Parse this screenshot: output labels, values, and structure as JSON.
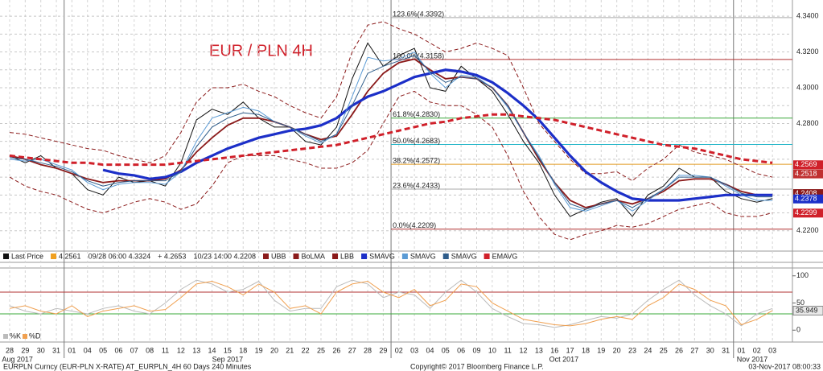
{
  "chart_data": [
    {
      "type": "line",
      "title": "EUR / PLN 4H",
      "categories": [
        "28",
        "29",
        "30",
        "31",
        "01",
        "04",
        "05",
        "06",
        "07",
        "08",
        "11",
        "12",
        "13",
        "14",
        "15",
        "18",
        "19",
        "20",
        "21",
        "22",
        "25",
        "26",
        "27",
        "28",
        "29",
        "02",
        "03",
        "04",
        "05",
        "06",
        "09",
        "10",
        "11",
        "12",
        "13",
        "16",
        "17",
        "18",
        "19",
        "20",
        "23",
        "24",
        "25",
        "26",
        "27",
        "30",
        "31",
        "01",
        "02",
        "03"
      ],
      "months": [
        "Aug 2017",
        "Sep 2017",
        "Oct 2017",
        "Nov 2017"
      ],
      "ylim": [
        4.21,
        4.345
      ],
      "yticks": [
        {
          "value": 4.22,
          "label": "4.2200"
        },
        {
          "value": 4.23,
          "label": ""
        },
        {
          "value": 4.24,
          "label": ""
        },
        {
          "value": 4.25,
          "label": ""
        },
        {
          "value": 4.26,
          "label": ""
        },
        {
          "value": 4.27,
          "label": ""
        },
        {
          "value": 4.28,
          "label": "4.2800"
        },
        {
          "value": 4.29,
          "label": ""
        },
        {
          "value": 4.3,
          "label": "4.3000"
        },
        {
          "value": 4.31,
          "label": ""
        },
        {
          "value": 4.32,
          "label": "4.3200"
        },
        {
          "value": 4.33,
          "label": ""
        },
        {
          "value": 4.34,
          "label": "4.3400"
        }
      ],
      "grid": true,
      "legend_stats": [
        "4.2561",
        "09/28 06:00 4.3324",
        "+ 4.2653",
        "10/23 14:00 4.2208"
      ],
      "series": [
        {
          "name": "Last Price",
          "color": "#111111",
          "style": "thin",
          "values": [
            4.262,
            4.258,
            4.262,
            4.255,
            4.252,
            4.243,
            4.24,
            4.25,
            4.247,
            4.248,
            4.245,
            4.258,
            4.282,
            4.288,
            4.285,
            4.292,
            4.283,
            4.278,
            4.278,
            4.27,
            4.268,
            4.278,
            4.305,
            4.325,
            4.312,
            4.318,
            4.322,
            4.3,
            4.298,
            4.312,
            4.305,
            4.298,
            4.285,
            4.27,
            4.258,
            4.24,
            4.228,
            4.232,
            4.236,
            4.238,
            4.228,
            4.24,
            4.245,
            4.255,
            4.25,
            4.25,
            4.242,
            4.238,
            4.236,
            4.238
          ]
        },
        {
          "name": "UBB",
          "color": "#8b1a1a",
          "style": "dashed",
          "values": [
            4.275,
            4.274,
            4.272,
            4.27,
            4.268,
            4.266,
            4.265,
            4.262,
            4.26,
            4.258,
            4.262,
            4.275,
            4.292,
            4.3,
            4.3,
            4.302,
            4.298,
            4.295,
            4.29,
            4.286,
            4.283,
            4.295,
            4.32,
            4.335,
            4.337,
            4.333,
            4.33,
            4.325,
            4.32,
            4.322,
            4.325,
            4.322,
            4.318,
            4.3,
            4.28,
            4.27,
            4.26,
            4.252,
            4.252,
            4.253,
            4.248,
            4.255,
            4.26,
            4.268,
            4.264,
            4.262,
            4.26,
            4.256,
            4.252,
            4.25
          ]
        },
        {
          "name": "BoLMA",
          "color": "#8b1a1a",
          "style": "medium",
          "values": [
            4.262,
            4.26,
            4.257,
            4.255,
            4.252,
            4.249,
            4.247,
            4.248,
            4.248,
            4.248,
            4.249,
            4.254,
            4.264,
            4.272,
            4.279,
            4.283,
            4.283,
            4.281,
            4.278,
            4.274,
            4.271,
            4.273,
            4.285,
            4.298,
            4.308,
            4.314,
            4.316,
            4.31,
            4.305,
            4.306,
            4.305,
            4.3,
            4.29,
            4.275,
            4.26,
            4.247,
            4.237,
            4.233,
            4.235,
            4.237,
            4.235,
            4.238,
            4.242,
            4.248,
            4.249,
            4.249,
            4.246,
            4.242,
            4.24,
            4.24
          ]
        },
        {
          "name": "LBB",
          "color": "#8b1a1a",
          "style": "dashed",
          "values": [
            4.25,
            4.245,
            4.242,
            4.24,
            4.236,
            4.232,
            4.23,
            4.233,
            4.236,
            4.238,
            4.236,
            4.232,
            4.235,
            4.245,
            4.258,
            4.262,
            4.262,
            4.262,
            4.26,
            4.258,
            4.255,
            4.255,
            4.258,
            4.265,
            4.28,
            4.295,
            4.298,
            4.292,
            4.29,
            4.29,
            4.285,
            4.278,
            4.262,
            4.242,
            4.228,
            4.218,
            4.215,
            4.218,
            4.22,
            4.223,
            4.222,
            4.224,
            4.228,
            4.232,
            4.234,
            4.236,
            4.23,
            4.228,
            4.228,
            4.23
          ]
        },
        {
          "name": "SMAVG",
          "color": "#1c2fc8",
          "style": "thick",
          "values": [
            null,
            null,
            null,
            null,
            null,
            null,
            4.254,
            4.252,
            4.251,
            4.249,
            4.25,
            4.253,
            4.258,
            4.262,
            4.266,
            4.269,
            4.272,
            4.274,
            4.276,
            4.277,
            4.279,
            4.283,
            4.29,
            4.295,
            4.298,
            4.302,
            4.306,
            4.308,
            4.31,
            4.309,
            4.307,
            4.303,
            4.297,
            4.29,
            4.282,
            4.272,
            4.262,
            4.253,
            4.247,
            4.242,
            4.238,
            4.237,
            4.237,
            4.237,
            4.238,
            4.239,
            4.24,
            4.24,
            4.24,
            4.24
          ]
        },
        {
          "name": "SMAVG",
          "color": "#5b9bd5",
          "style": "thin",
          "values": [
            4.26,
            4.259,
            4.26,
            4.257,
            4.254,
            4.247,
            4.243,
            4.246,
            4.247,
            4.247,
            4.246,
            4.253,
            4.27,
            4.283,
            4.286,
            4.289,
            4.287,
            4.281,
            4.278,
            4.273,
            4.269,
            4.274,
            4.295,
            4.317,
            4.315,
            4.316,
            4.32,
            4.308,
            4.3,
            4.307,
            4.306,
            4.3,
            4.289,
            4.275,
            4.262,
            4.246,
            4.233,
            4.231,
            4.234,
            4.237,
            4.231,
            4.237,
            4.243,
            4.251,
            4.251,
            4.25,
            4.245,
            4.24,
            4.237,
            4.237
          ]
        },
        {
          "name": "SMAVG",
          "color": "#2e5c8a",
          "style": "thin",
          "values": [
            4.261,
            4.26,
            4.258,
            4.256,
            4.253,
            4.248,
            4.245,
            4.247,
            4.248,
            4.248,
            4.248,
            4.253,
            4.267,
            4.278,
            4.283,
            4.286,
            4.285,
            4.281,
            4.278,
            4.274,
            4.27,
            4.274,
            4.29,
            4.308,
            4.312,
            4.315,
            4.318,
            4.309,
            4.303,
            4.306,
            4.305,
            4.3,
            4.29,
            4.275,
            4.261,
            4.247,
            4.235,
            4.232,
            4.235,
            4.237,
            4.233,
            4.238,
            4.243,
            4.25,
            4.25,
            4.25,
            4.246,
            4.241,
            4.239,
            4.239
          ]
        },
        {
          "name": "EMAVG",
          "color": "#d0202a",
          "style": "thickdash",
          "values": [
            4.262,
            4.261,
            4.26,
            4.259,
            4.258,
            4.258,
            4.257,
            4.257,
            4.257,
            4.257,
            4.257,
            4.258,
            4.259,
            4.26,
            4.261,
            4.262,
            4.263,
            4.264,
            4.265,
            4.266,
            4.267,
            4.268,
            4.27,
            4.272,
            4.274,
            4.276,
            4.278,
            4.28,
            4.281,
            4.283,
            4.284,
            4.285,
            4.285,
            4.284,
            4.283,
            4.282,
            4.28,
            4.278,
            4.276,
            4.274,
            4.272,
            4.27,
            4.268,
            4.267,
            4.266,
            4.264,
            4.262,
            4.26,
            4.259,
            4.258
          ]
        }
      ],
      "fib_levels": [
        {
          "label": "123.6%(4.3392)",
          "value": 4.3392,
          "color": "#aaaaaa"
        },
        {
          "label": "100.0%(4.3158)",
          "value": 4.3158,
          "color": "#b03030"
        },
        {
          "label": "61.8%(4.2830)",
          "value": 4.283,
          "color": "#3aa83a"
        },
        {
          "label": "50.0%(4.2683)",
          "value": 4.2683,
          "color": "#22b5c8"
        },
        {
          "label": "38.2%(4.2572)",
          "value": 4.2572,
          "color": "#e09a20"
        },
        {
          "label": "23.6%(4.2433)",
          "value": 4.2433,
          "color": "#aaaaaa"
        },
        {
          "label": "0.0%(4.2209)",
          "value": 4.2209,
          "color": "#b03030"
        }
      ],
      "price_tags": {
        "values": [
          4.2569,
          4.2518,
          4.2408,
          4.2378,
          4.2299
        ],
        "colors": [
          "#d0202a",
          "#c03030",
          "#8b1a1a",
          "#1c2fc8",
          "#d0202a"
        ]
      }
    },
    {
      "type": "line",
      "ylim": [
        -10,
        110
      ],
      "yticks": [
        0,
        50,
        100
      ],
      "hlines": [
        {
          "value": 70,
          "color": "#b03030"
        },
        {
          "value": 30,
          "color": "#3aa83a"
        }
      ],
      "last_value": 35.949,
      "series": [
        {
          "name": "%K",
          "color": "#bbbbbb",
          "style": "thin",
          "values": [
            45,
            35,
            30,
            40,
            35,
            30,
            40,
            45,
            35,
            30,
            50,
            75,
            92,
            85,
            70,
            75,
            90,
            55,
            35,
            40,
            40,
            80,
            92,
            85,
            60,
            70,
            65,
            40,
            70,
            92,
            70,
            40,
            25,
            12,
            10,
            5,
            10,
            18,
            25,
            22,
            30,
            55,
            75,
            92,
            65,
            45,
            30,
            8,
            30,
            40
          ]
        },
        {
          "name": "%D",
          "color": "#f0a050",
          "style": "thin",
          "values": [
            40,
            45,
            35,
            30,
            45,
            25,
            35,
            40,
            45,
            35,
            38,
            60,
            85,
            90,
            80,
            65,
            85,
            70,
            40,
            45,
            30,
            70,
            85,
            90,
            70,
            60,
            75,
            45,
            55,
            85,
            80,
            50,
            35,
            20,
            15,
            10,
            8,
            12,
            20,
            25,
            20,
            45,
            60,
            85,
            75,
            55,
            45,
            10,
            20,
            36
          ]
        }
      ]
    }
  ],
  "footer": {
    "left": "EURPLN Curncy (EUR-PLN X-RATE) AT_EURPLN_4H 60 Days 240 Minutes",
    "center": "Copyright© 2017 Bloomberg Finance L.P.",
    "right": "03-Nov-2017 08:00:33"
  }
}
